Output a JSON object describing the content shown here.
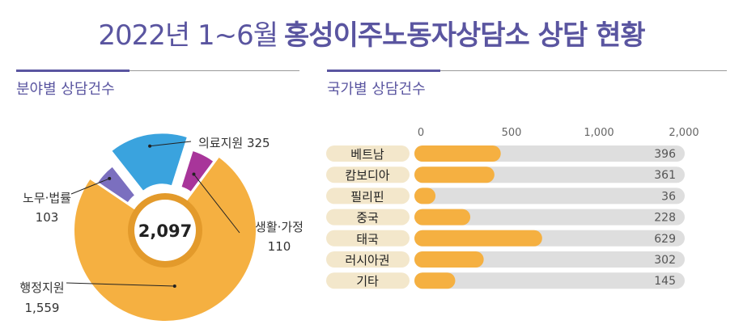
{
  "title": {
    "prefix": "2022년 1~6월",
    "bold": "홍성이주노동자상담소 상담 현황"
  },
  "sections": {
    "left": "분야별 상담건수",
    "right": "국가별 상담건수"
  },
  "colors": {
    "accent": "#5a55a0",
    "pie": [
      "#f5b041",
      "#7b6fbf",
      "#3aa3de",
      "#a8359a"
    ],
    "bar": "#f5b041",
    "track": "#dedede",
    "label_bg": "#f3e7cb"
  },
  "chart_data": [
    {
      "type": "pie",
      "variant": "exploded-donut",
      "center_label": "2,097",
      "slices": [
        {
          "name": "행정지원",
          "value": 1559,
          "value_label": "1,559"
        },
        {
          "name": "노무·법률",
          "value": 103,
          "value_label": "103"
        },
        {
          "name": "의료지원",
          "value": 325,
          "value_label": "325"
        },
        {
          "name": "생활·가정",
          "value": 110,
          "value_label": "110"
        }
      ]
    },
    {
      "type": "bar",
      "orientation": "horizontal",
      "categories": [
        "베트남",
        "캄보디아",
        "필리핀",
        "중국",
        "태국",
        "러시아권",
        "기타"
      ],
      "values": [
        396,
        361,
        36,
        228,
        629,
        302,
        145
      ],
      "xticks": [
        {
          "value": 0,
          "label": "0"
        },
        {
          "value": 500,
          "label": "500"
        },
        {
          "value": 1000,
          "label": "1,000"
        },
        {
          "value": 2000,
          "label": "2,000"
        }
      ],
      "scale": "nonlinear"
    }
  ]
}
